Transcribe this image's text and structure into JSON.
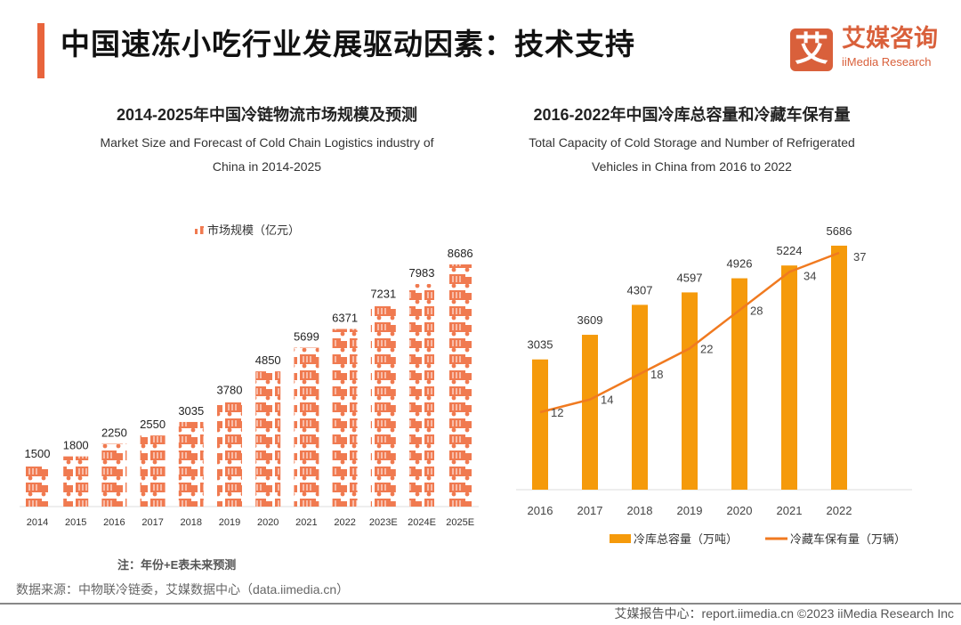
{
  "header": {
    "title": "中国速冻小吃行业发展驱动因素：技术支持",
    "logo_mark": "艾",
    "logo_cn": "艾媒咨询",
    "logo_en": "iiMedia Research"
  },
  "chart_data": [
    {
      "type": "bar",
      "title": "2014-2025年中国冷链物流市场规模及预测",
      "subtitle_line1": "Market Size and Forecast of Cold Chain Logistics industry of",
      "subtitle_line2": "China in 2014-2025",
      "legend": "市场规模（亿元）",
      "legend_position": "top-center",
      "categories": [
        "2014",
        "2015",
        "2016",
        "2017",
        "2018",
        "2019",
        "2020",
        "2021",
        "2022",
        "2023E",
        "2024E",
        "2025E"
      ],
      "values": [
        1500,
        1800,
        2250,
        2550,
        3035,
        3780,
        4850,
        5699,
        6371,
        7231,
        7983,
        8686
      ],
      "ylim": [
        0,
        8686
      ],
      "color": "#f07a50"
    },
    {
      "type": "bar+line",
      "title": "2016-2022年中国冷库总容量和冷藏车保有量",
      "subtitle_line1": "Total Capacity of Cold Storage and Number of Refrigerated",
      "subtitle_line2": "Vehicles in China from 2016 to 2022",
      "legend_position": "bottom",
      "categories": [
        "2016",
        "2017",
        "2018",
        "2019",
        "2020",
        "2021",
        "2022"
      ],
      "series": [
        {
          "name": "冷库总容量（万吨）",
          "type": "bar",
          "values": [
            3035,
            3609,
            4307,
            4597,
            4926,
            5224,
            5686
          ],
          "color": "#f59a0b"
        },
        {
          "name": "冷藏车保有量（万辆）",
          "type": "line",
          "values": [
            12,
            14,
            18,
            22,
            28,
            34,
            37
          ],
          "color": "#f07a20"
        }
      ]
    }
  ],
  "note": "注：年份+E表未来预测",
  "source": "数据来源：中物联冷链委，艾媒数据中心（data.iimedia.cn）",
  "footer": "艾媒报告中心：report.iimedia.cn   ©2023  iiMedia Research  Inc"
}
